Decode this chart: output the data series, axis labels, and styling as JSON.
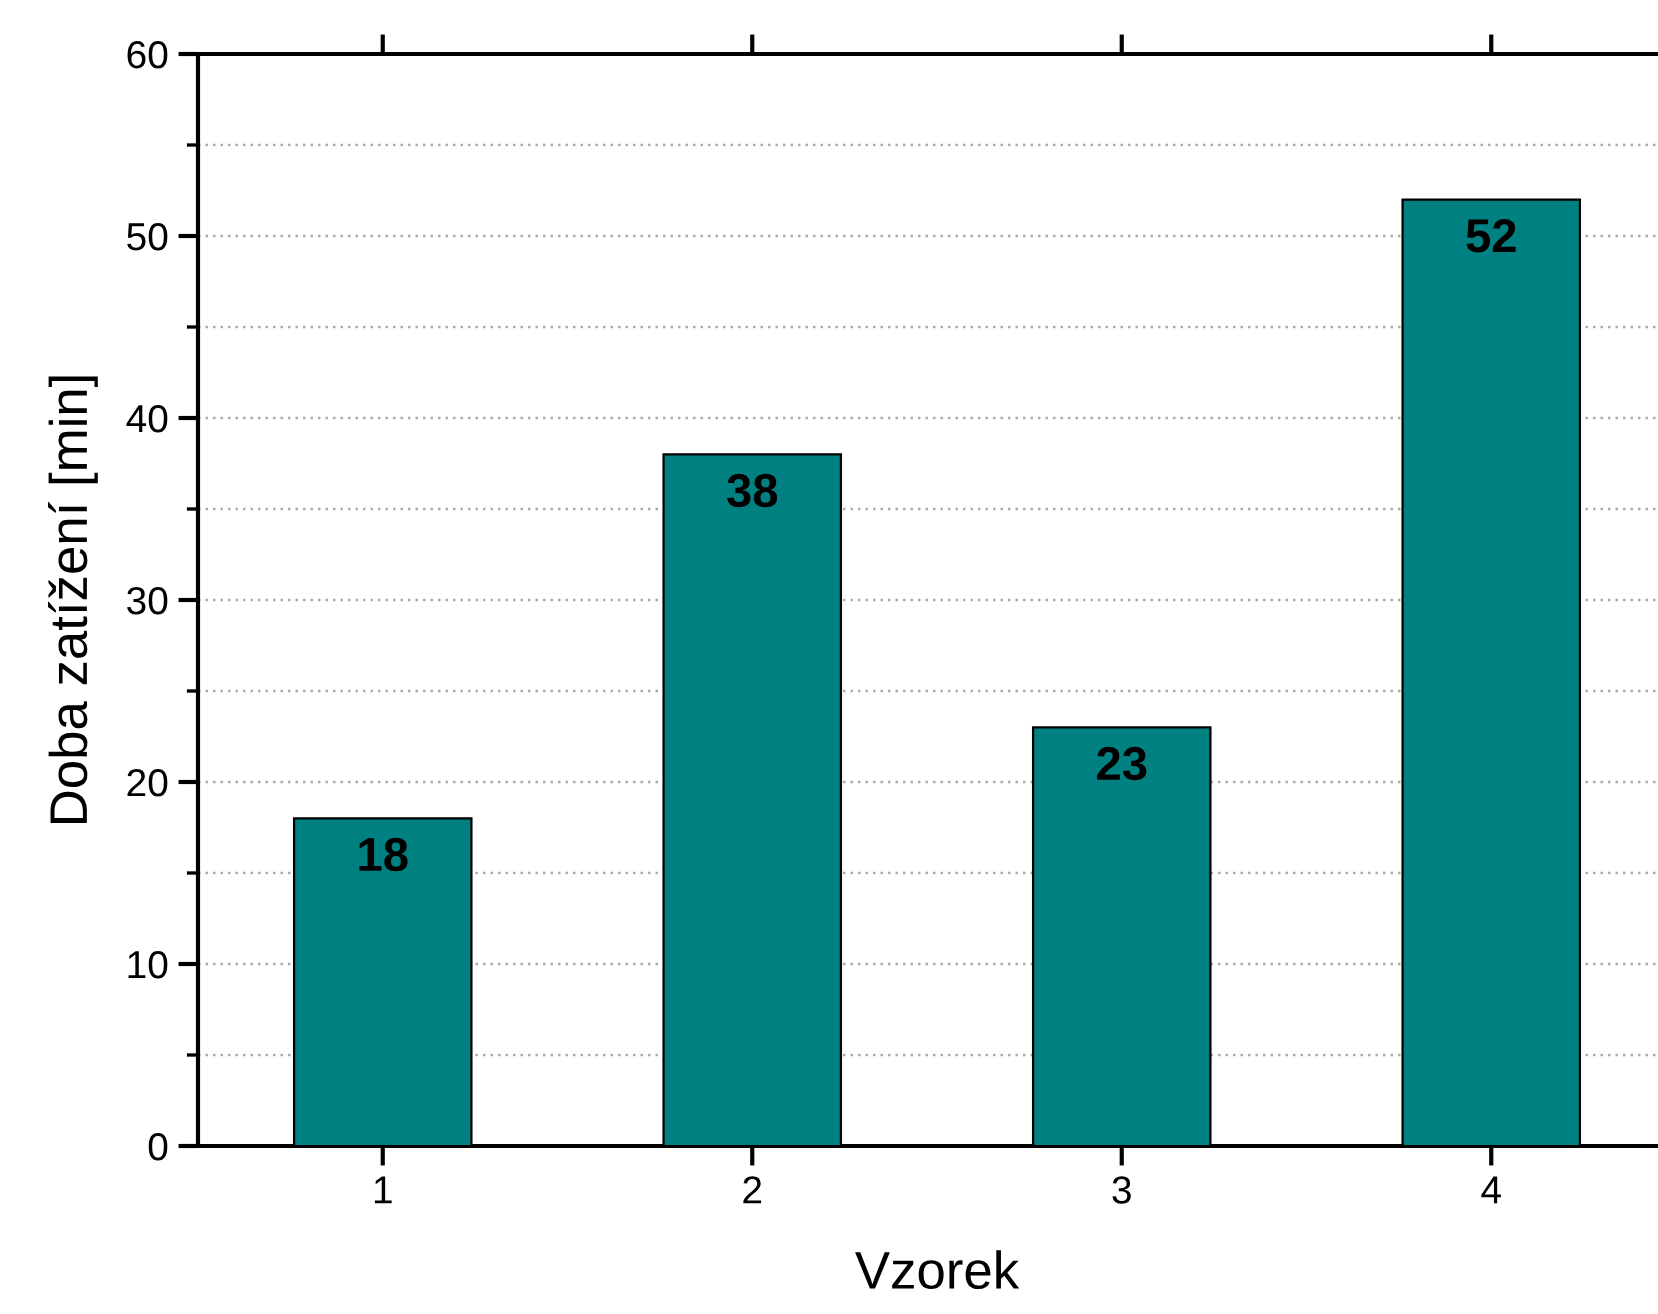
{
  "chart_data": {
    "type": "bar",
    "xlabel": "Vzorek",
    "ylabel": "Doba zatížení [min]",
    "categories": [
      "1",
      "2",
      "3",
      "4"
    ],
    "values": [
      18,
      38,
      23,
      52
    ],
    "color": "#008080",
    "ylim": [
      0,
      60
    ],
    "yticks": [
      0,
      10,
      20,
      30,
      40,
      50,
      60
    ],
    "grid": "y",
    "data_labels": true
  }
}
